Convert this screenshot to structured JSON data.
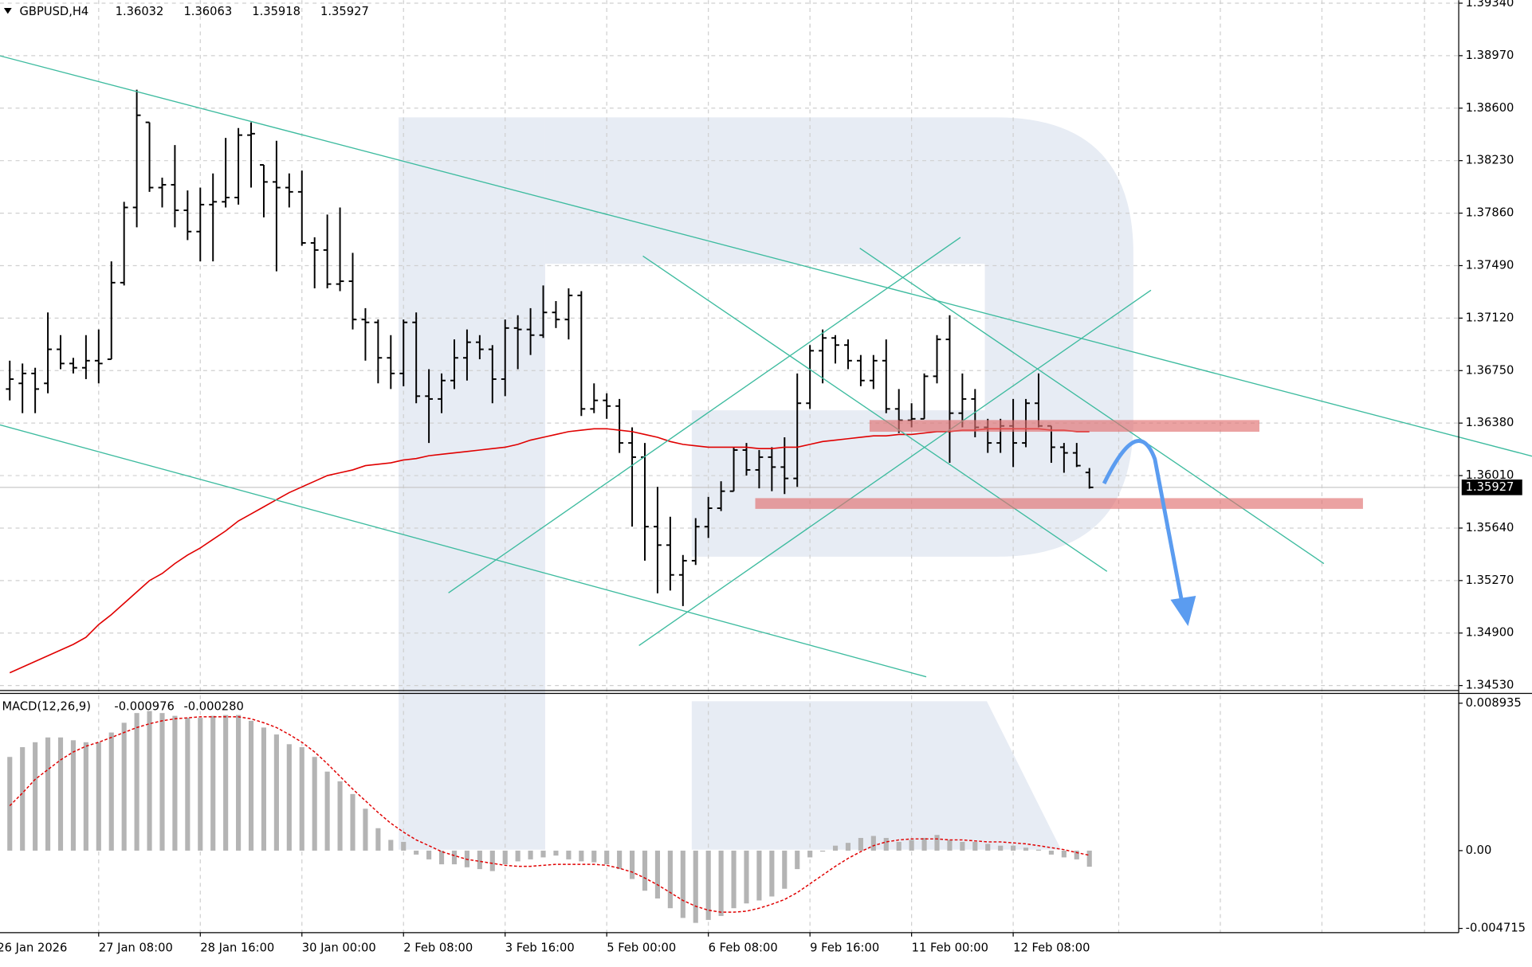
{
  "chart_data": [
    {
      "type": "ohlc",
      "title": "GBPUSD,H4",
      "categories": [
        "26 Jan 2026",
        null,
        null,
        null,
        null,
        null,
        null,
        null,
        "27 Jan 08:00",
        null,
        null,
        null,
        null,
        null,
        null,
        null,
        "28 Jan 16:00",
        null,
        null,
        null,
        null,
        null,
        null,
        null,
        "30 Jan 00:00",
        null,
        null,
        null,
        null,
        null,
        null,
        null,
        "2 Feb 08:00",
        null,
        null,
        null,
        null,
        null,
        null,
        null,
        "3 Feb 16:00",
        null,
        null,
        null,
        null,
        null,
        null,
        null,
        "5 Feb 00:00",
        null,
        null,
        null,
        null,
        null,
        null,
        null,
        "6 Feb 08:00",
        null,
        null,
        null,
        null,
        null,
        null,
        null,
        "9 Feb 16:00",
        null,
        null,
        null,
        null,
        null,
        null,
        null,
        "11 Feb 00:00",
        null,
        null,
        null,
        null,
        null,
        null,
        null,
        "12 Feb 08:00",
        null,
        null,
        null,
        null,
        null,
        null
      ],
      "open": [
        null,
        1.3662,
        1.3666,
        1.3673,
        1.3666,
        1.369,
        1.368,
        1.3677,
        1.3682,
        1.3683,
        1.3737,
        1.379,
        1.385,
        1.3804,
        1.3806,
        1.3788,
        1.3773,
        1.3792,
        1.3794,
        1.3797,
        1.3841,
        1.382,
        1.3808,
        1.3804,
        1.3801,
        1.3765,
        1.376,
        1.3736,
        1.3738,
        1.3711,
        1.3709,
        1.3684,
        1.3673,
        1.3709,
        1.3657,
        1.3655,
        1.3668,
        1.3684,
        1.3695,
        1.369,
        1.3669,
        1.3705,
        1.3704,
        1.37,
        1.3716,
        1.3711,
        1.3728,
        1.3648,
        1.3654,
        1.365,
        1.3624,
        1.3614,
        1.3565,
        1.3552,
        1.3531,
        1.3541,
        1.3565,
        1.3578,
        1.359,
        1.3619,
        1.3605,
        1.3614,
        1.3607,
        1.3599,
        1.3652,
        1.3689,
        1.3698,
        1.3693,
        1.3682,
        1.3668,
        1.3682,
        1.3648,
        1.364,
        1.3641,
        1.3671,
        1.3697,
        1.3645,
        1.3655,
        1.3635,
        1.3624,
        1.3636,
        1.3624,
        1.3652,
        1.3636,
        1.3621,
        1.3617,
        1.36032
      ],
      "high": [
        null,
        1.3682,
        1.368,
        1.3677,
        1.3716,
        1.37,
        1.3684,
        1.37,
        1.3704,
        1.3752,
        1.3794,
        1.3873,
        1.385,
        1.3811,
        1.3834,
        1.3802,
        1.3804,
        1.3814,
        1.3839,
        1.3846,
        1.385,
        1.382,
        1.3837,
        1.3814,
        1.3816,
        1.3769,
        1.3785,
        1.379,
        1.3758,
        1.3719,
        1.3711,
        1.37,
        1.3711,
        1.3716,
        1.3676,
        1.3673,
        1.3697,
        1.3704,
        1.37,
        1.3693,
        1.3711,
        1.3714,
        1.3719,
        1.3735,
        1.3724,
        1.3733,
        1.3731,
        1.3666,
        1.3659,
        1.3655,
        1.3635,
        1.3624,
        1.3593,
        1.3572,
        1.3545,
        1.3571,
        1.3586,
        1.3597,
        1.3621,
        1.3624,
        1.3619,
        1.3621,
        1.3628,
        1.3673,
        1.3693,
        1.3704,
        1.37,
        1.3697,
        1.3686,
        1.3686,
        1.3697,
        1.3662,
        1.3652,
        1.3673,
        1.37,
        1.3714,
        1.3673,
        1.3662,
        1.3641,
        1.3641,
        1.3655,
        1.3655,
        1.3673,
        1.3636,
        1.3624,
        1.3624,
        1.36063
      ],
      "low": [
        null,
        1.3654,
        1.3645,
        1.3645,
        1.3659,
        1.3676,
        1.3673,
        1.3669,
        1.3666,
        1.3683,
        1.3735,
        1.3776,
        1.3801,
        1.379,
        1.3776,
        1.3767,
        1.3752,
        1.3752,
        1.379,
        1.3792,
        1.3804,
        1.3783,
        1.3745,
        1.379,
        1.3763,
        1.3733,
        1.3733,
        1.3731,
        1.3704,
        1.3682,
        1.3666,
        1.3662,
        1.3664,
        1.3652,
        1.3624,
        1.3645,
        1.3662,
        1.3668,
        1.3683,
        1.3652,
        1.3657,
        1.3676,
        1.3686,
        1.3698,
        1.3705,
        1.3697,
        1.3643,
        1.3645,
        1.3641,
        1.3617,
        1.3565,
        1.3541,
        1.3518,
        1.352,
        1.3509,
        1.3538,
        1.3557,
        1.3576,
        1.359,
        1.3601,
        1.3592,
        1.359,
        1.3588,
        1.3593,
        1.3648,
        1.3666,
        1.368,
        1.3676,
        1.3664,
        1.3662,
        1.3645,
        1.3631,
        1.3635,
        1.3641,
        1.3666,
        1.361,
        1.3635,
        1.3628,
        1.3617,
        1.3617,
        1.3607,
        1.3621,
        1.3635,
        1.361,
        1.3603,
        1.3607,
        1.35918
      ],
      "close": [
        null,
        1.3669,
        1.3673,
        1.3662,
        1.369,
        1.368,
        1.3677,
        1.3682,
        1.368,
        1.3737,
        1.379,
        1.3855,
        1.3804,
        1.3806,
        1.3788,
        1.3773,
        1.3792,
        1.3794,
        1.3797,
        1.3841,
        1.3842,
        1.3808,
        1.3804,
        1.3801,
        1.3765,
        1.376,
        1.3736,
        1.3738,
        1.3711,
        1.3709,
        1.3684,
        1.3673,
        1.3709,
        1.3657,
        1.3655,
        1.3668,
        1.3684,
        1.3695,
        1.369,
        1.3669,
        1.3705,
        1.3704,
        1.37,
        1.3716,
        1.3711,
        1.3728,
        1.3648,
        1.3654,
        1.365,
        1.3624,
        1.3614,
        1.3565,
        1.3552,
        1.3531,
        1.3541,
        1.3565,
        1.3578,
        1.359,
        1.3619,
        1.3605,
        1.3614,
        1.3607,
        1.3599,
        1.3652,
        1.3689,
        1.3698,
        1.3693,
        1.3682,
        1.3668,
        1.3682,
        1.3648,
        1.364,
        1.3641,
        1.3671,
        1.3697,
        1.3645,
        1.3655,
        1.3635,
        1.3624,
        1.3636,
        1.3624,
        1.3652,
        1.3636,
        1.3621,
        1.3617,
        1.3608,
        1.35927
      ],
      "color": "#000000",
      "overlay": {
        "color": "#e00000",
        "values": [
          null,
          1.3462,
          1.3466,
          1.347,
          1.3474,
          1.3478,
          1.3482,
          1.3487,
          1.3496,
          1.3503,
          1.3511,
          1.3519,
          1.3527,
          1.3532,
          1.3539,
          1.3545,
          1.355,
          1.3556,
          1.3562,
          1.3569,
          1.3574,
          1.3579,
          1.3584,
          1.3589,
          1.3593,
          1.3597,
          1.3601,
          1.3603,
          1.3605,
          1.3608,
          1.3609,
          1.361,
          1.3612,
          1.3613,
          1.3615,
          1.3616,
          1.3617,
          1.3618,
          1.3619,
          1.362,
          1.3621,
          1.3623,
          1.3626,
          1.3628,
          1.363,
          1.3632,
          1.3633,
          1.3634,
          1.3634,
          1.3633,
          1.3632,
          1.363,
          1.3628,
          1.3625,
          1.3623,
          1.3622,
          1.3621,
          1.3621,
          1.3621,
          1.3621,
          1.362,
          1.362,
          1.3621,
          1.3621,
          1.3623,
          1.3625,
          1.3626,
          1.3627,
          1.3628,
          1.3629,
          1.3629,
          1.363,
          1.363,
          1.3631,
          1.3632,
          1.3632,
          1.3633,
          1.3633,
          1.3634,
          1.3634,
          1.3634,
          1.3634,
          1.3634,
          1.3633,
          1.3633,
          1.3632,
          1.3632
        ]
      },
      "ylim": [
        1.34502,
        1.39361
      ],
      "yticks": [
        {
          "value": 1.3453,
          "label": "1.34530"
        },
        {
          "value": 1.349,
          "label": "1.34900"
        },
        {
          "value": 1.3527,
          "label": "1.35270"
        },
        {
          "value": 1.3564,
          "label": "1.35640"
        },
        {
          "value": 1.3601,
          "label": "1.36010"
        },
        {
          "value": 1.3638,
          "label": "1.36380"
        },
        {
          "value": 1.3675,
          "label": "1.36750"
        },
        {
          "value": 1.3712,
          "label": "1.37120"
        },
        {
          "value": 1.3749,
          "label": "1.37490"
        },
        {
          "value": 1.3786,
          "label": "1.37860"
        },
        {
          "value": 1.3823,
          "label": "1.38230"
        },
        {
          "value": 1.386,
          "label": "1.38600"
        },
        {
          "value": 1.3897,
          "label": "1.38970"
        },
        {
          "value": 1.3934,
          "label": "1.39340"
        }
      ],
      "grid": true
    },
    {
      "type": "macd",
      "title": "MACD(12,26,9)",
      "series": [
        {
          "color": "#b4b4b4",
          "values": [
            null,
            0.00568,
            0.00627,
            0.00657,
            0.00686,
            0.00686,
            0.00669,
            0.00657,
            0.00657,
            0.00716,
            0.00775,
            0.00834,
            0.00846,
            0.00834,
            0.00817,
            0.00805,
            0.00805,
            0.00817,
            0.00822,
            0.00822,
            0.00787,
            0.00746,
            0.00704,
            0.00645,
            0.00627,
            0.00568,
            0.00479,
            0.0042,
            0.00343,
            0.00254,
            0.00136,
            0.00065,
            0.00053,
            -0.00024,
            -0.00053,
            -0.00083,
            -0.00083,
            -0.00101,
            -0.00112,
            -0.00124,
            -0.00083,
            -0.00065,
            -0.00053,
            -0.00041,
            -0.0003,
            -0.00053,
            -0.00065,
            -0.00071,
            -0.00083,
            -0.00112,
            -0.00172,
            -0.00243,
            -0.0029,
            -0.00349,
            -0.00408,
            -0.00438,
            -0.0042,
            -0.00396,
            -0.00349,
            -0.0032,
            -0.00302,
            -0.00278,
            -0.00231,
            -0.00112,
            -0.00041,
            -6e-05,
            0.0003,
            0.00047,
            0.00077,
            0.00089,
            0.00077,
            0.00053,
            0.00065,
            0.00077,
            0.00095,
            0.00065,
            0.00053,
            0.00053,
            0.00041,
            0.0003,
            0.0003,
            0.00018,
            6e-05,
            -0.00024,
            -0.00041,
            -0.00053,
            -0.000976
          ]
        },
        {
          "color": "#e00000",
          "values": [
            null,
            0.00272,
            0.00349,
            0.00432,
            0.00491,
            0.0055,
            0.00598,
            0.00633,
            0.00657,
            0.00686,
            0.00716,
            0.00746,
            0.00769,
            0.00787,
            0.00799,
            0.00805,
            0.00811,
            0.00811,
            0.00811,
            0.00811,
            0.00799,
            0.00775,
            0.00746,
            0.00704,
            0.00657,
            0.00598,
            0.00527,
            0.0045,
            0.00373,
            0.00302,
            0.00231,
            0.00166,
            0.00112,
            0.00065,
            0.0003,
            -6e-05,
            -0.0003,
            -0.00053,
            -0.00065,
            -0.00077,
            -0.00089,
            -0.00095,
            -0.00095,
            -0.00089,
            -0.00083,
            -0.00083,
            -0.00083,
            -0.00083,
            -0.00089,
            -0.00107,
            -0.0013,
            -0.00166,
            -0.00207,
            -0.00254,
            -0.00302,
            -0.00337,
            -0.00361,
            -0.00373,
            -0.00373,
            -0.00367,
            -0.00349,
            -0.00325,
            -0.00296,
            -0.00254,
            -0.00201,
            -0.00148,
            -0.00095,
            -0.00047,
            -6e-05,
            0.0003,
            0.00053,
            0.00065,
            0.00071,
            0.00071,
            0.00071,
            0.00065,
            0.00065,
            0.00059,
            0.00053,
            0.00053,
            0.00047,
            0.00041,
            0.0003,
            0.00018,
            6e-05,
            -0.00012,
            -0.00028
          ],
          "value_labels": [
            null,
            null,
            null,
            null,
            null,
            null,
            null,
            null,
            null,
            null,
            null,
            null,
            null,
            null,
            null,
            null,
            null,
            null,
            null,
            null,
            null,
            null,
            null,
            null,
            null,
            null,
            null,
            null,
            null,
            null,
            null,
            null,
            null,
            null,
            null,
            null,
            null,
            null,
            null,
            null,
            null,
            null,
            null,
            null,
            null,
            null,
            null,
            null,
            null,
            null,
            null,
            null,
            null,
            null,
            null,
            null,
            null,
            null,
            null,
            null,
            null,
            null,
            null,
            null,
            null,
            null,
            null,
            null,
            null,
            null,
            null,
            null,
            null,
            null,
            null,
            null,
            null,
            null,
            null,
            null,
            null,
            null,
            null,
            null,
            null,
            null,
            "-0.000280"
          ]
        }
      ],
      "ylim": [
        -0.00497,
        0.00941
      ],
      "yticks": [
        0.008935,
        {
          "value": 0,
          "label": "0.00"
        },
        -0.004715
      ]
    }
  ]
}
